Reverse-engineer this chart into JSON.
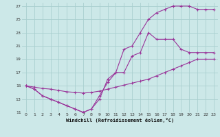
{
  "xlabel": "Windchill (Refroidissement éolien,°C)",
  "bg_color": "#cce8e8",
  "grid_color": "#aacfcf",
  "line_color": "#993399",
  "xlim": [
    -0.5,
    23.5
  ],
  "ylim": [
    11,
    27.5
  ],
  "xticks": [
    0,
    1,
    2,
    3,
    4,
    5,
    6,
    7,
    8,
    9,
    10,
    11,
    12,
    13,
    14,
    15,
    16,
    17,
    18,
    19,
    20,
    21,
    22,
    23
  ],
  "yticks": [
    11,
    13,
    15,
    17,
    19,
    21,
    23,
    25,
    27
  ],
  "line1_x": [
    0,
    1,
    2,
    3,
    4,
    5,
    6,
    7,
    8,
    9,
    10,
    11,
    12,
    13,
    14,
    15,
    16,
    17,
    18,
    19,
    20,
    21,
    22,
    23
  ],
  "line1_y": [
    15,
    14.5,
    13.5,
    13,
    12.5,
    12,
    11.5,
    11,
    11.5,
    13.5,
    15.5,
    17,
    17,
    19.5,
    20,
    23,
    22,
    22,
    22,
    20.5,
    20,
    20,
    20,
    20
  ],
  "line2_x": [
    0,
    1,
    2,
    3,
    4,
    5,
    6,
    7,
    8,
    9,
    10,
    11,
    12,
    13,
    14,
    15,
    16,
    17,
    18,
    19,
    20,
    21,
    22,
    23
  ],
  "line2_y": [
    15,
    14.5,
    13.5,
    13,
    12.5,
    12,
    11.5,
    11,
    11.5,
    13,
    16,
    17,
    20.5,
    21,
    23,
    25,
    26,
    26.5,
    27,
    27,
    27,
    26.5,
    26.5,
    26.5
  ],
  "line3_x": [
    0,
    1,
    2,
    3,
    4,
    5,
    6,
    7,
    8,
    9,
    10,
    11,
    12,
    13,
    14,
    15,
    16,
    17,
    18,
    19,
    20,
    21,
    22,
    23
  ],
  "line3_y": [
    15,
    14.8,
    14.6,
    14.5,
    14.3,
    14.1,
    14,
    13.9,
    14,
    14.2,
    14.5,
    14.8,
    15.1,
    15.4,
    15.7,
    16,
    16.5,
    17,
    17.5,
    18,
    18.5,
    19,
    19,
    19
  ]
}
